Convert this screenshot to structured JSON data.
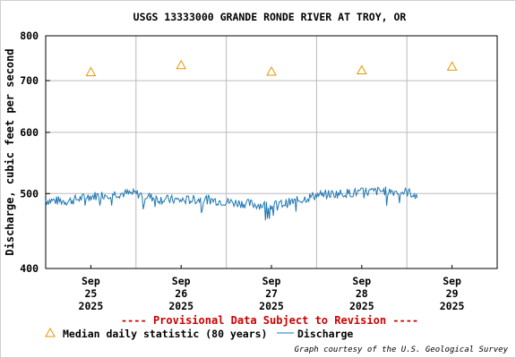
{
  "chart_data": {
    "type": "line",
    "title": "USGS 13333000 GRANDE RONDE RIVER AT TROY, OR",
    "ylabel": "Discharge, cubic feet per second",
    "y_scale": "log",
    "ylim": [
      400,
      800
    ],
    "y_ticks": [
      "400",
      "500",
      "600",
      "700",
      "800"
    ],
    "xlim": [
      "2025-09-24T12:00",
      "2025-09-29T12:00"
    ],
    "x_ticks": [
      {
        "date": "2025-09-25",
        "month": "Sep",
        "day": "25",
        "year": "2025"
      },
      {
        "date": "2025-09-26",
        "month": "Sep",
        "day": "26",
        "year": "2025"
      },
      {
        "date": "2025-09-27",
        "month": "Sep",
        "day": "27",
        "year": "2025"
      },
      {
        "date": "2025-09-28",
        "month": "Sep",
        "day": "28",
        "year": "2025"
      },
      {
        "date": "2025-09-29",
        "month": "Sep",
        "day": "29",
        "year": "2025"
      }
    ],
    "grid": true,
    "series": [
      {
        "name": "Median daily statistic (80 years)",
        "marker": "triangle",
        "color": "#e69500",
        "points": [
          {
            "x": "2025-09-25T00:00",
            "y": 718
          },
          {
            "x": "2025-09-26T00:00",
            "y": 733
          },
          {
            "x": "2025-09-27T00:00",
            "y": 719
          },
          {
            "x": "2025-09-28T00:00",
            "y": 722
          },
          {
            "x": "2025-09-29T00:00",
            "y": 730
          }
        ]
      },
      {
        "name": "Discharge",
        "color": "#1f77b4",
        "points": [
          {
            "x": "2025-09-24T12:00",
            "y": 490
          },
          {
            "x": "2025-09-24T18:00",
            "y": 489
          },
          {
            "x": "2025-09-25T00:00",
            "y": 496
          },
          {
            "x": "2025-09-25T06:00",
            "y": 500
          },
          {
            "x": "2025-09-25T12:00",
            "y": 500
          },
          {
            "x": "2025-09-25T18:00",
            "y": 492
          },
          {
            "x": "2025-09-26T00:00",
            "y": 490
          },
          {
            "x": "2025-09-26T06:00",
            "y": 492
          },
          {
            "x": "2025-09-26T12:00",
            "y": 488
          },
          {
            "x": "2025-09-26T18:00",
            "y": 485
          },
          {
            "x": "2025-09-27T00:00",
            "y": 482
          },
          {
            "x": "2025-09-27T06:00",
            "y": 488
          },
          {
            "x": "2025-09-27T12:00",
            "y": 498
          },
          {
            "x": "2025-09-27T18:00",
            "y": 500
          },
          {
            "x": "2025-09-28T00:00",
            "y": 502
          },
          {
            "x": "2025-09-28T06:00",
            "y": 504
          },
          {
            "x": "2025-09-28T12:00",
            "y": 502
          },
          {
            "x": "2025-09-28T15:00",
            "y": 498
          }
        ]
      }
    ],
    "annotations": [
      "---- Provisional Data Subject to Revision ----"
    ],
    "legend_position": "bottom"
  },
  "footer": {
    "provisional": "---- Provisional Data Subject to Revision ----",
    "legend_median": "Median daily statistic (80 years)",
    "legend_discharge": "Discharge",
    "credit": "Graph courtesy of the U.S. Geological Survey"
  }
}
